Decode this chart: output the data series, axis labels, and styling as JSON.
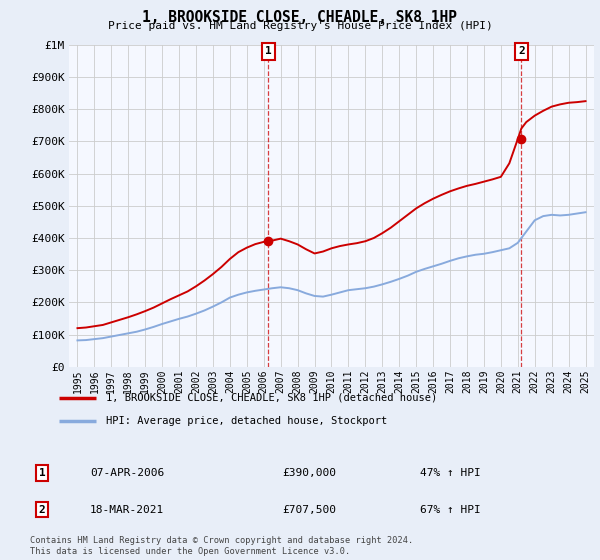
{
  "title": "1, BROOKSIDE CLOSE, CHEADLE, SK8 1HP",
  "subtitle": "Price paid vs. HM Land Registry's House Price Index (HPI)",
  "ylabel_ticks": [
    "£0",
    "£100K",
    "£200K",
    "£300K",
    "£400K",
    "£500K",
    "£600K",
    "£700K",
    "£800K",
    "£900K",
    "£1M"
  ],
  "ytick_values": [
    0,
    100000,
    200000,
    300000,
    400000,
    500000,
    600000,
    700000,
    800000,
    900000,
    1000000
  ],
  "ylim": [
    0,
    1000000
  ],
  "xlim_start": 1994.5,
  "xlim_end": 2025.5,
  "sale1_x": 2006.27,
  "sale1_y": 390000,
  "sale1_label": "1",
  "sale2_x": 2021.21,
  "sale2_y": 707500,
  "sale2_label": "2",
  "sale_color": "#cc0000",
  "hpi_line_color": "#88aadd",
  "property_line_color": "#cc0000",
  "background_color": "#e8eef8",
  "plot_bg_color": "#f5f8ff",
  "grid_color": "#cccccc",
  "legend_label1": "1, BROOKSIDE CLOSE, CHEADLE, SK8 1HP (detached house)",
  "legend_label2": "HPI: Average price, detached house, Stockport",
  "table_row1": [
    "1",
    "07-APR-2006",
    "£390,000",
    "47% ↑ HPI"
  ],
  "table_row2": [
    "2",
    "18-MAR-2021",
    "£707,500",
    "67% ↑ HPI"
  ],
  "footer": "Contains HM Land Registry data © Crown copyright and database right 2024.\nThis data is licensed under the Open Government Licence v3.0.",
  "hpi_years": [
    1995,
    1995.5,
    1996,
    1996.5,
    1997,
    1997.5,
    1998,
    1998.5,
    1999,
    1999.5,
    2000,
    2000.5,
    2001,
    2001.5,
    2002,
    2002.5,
    2003,
    2003.5,
    2004,
    2004.5,
    2005,
    2005.5,
    2006,
    2006.5,
    2007,
    2007.5,
    2008,
    2008.5,
    2009,
    2009.5,
    2010,
    2010.5,
    2011,
    2011.5,
    2012,
    2012.5,
    2013,
    2013.5,
    2014,
    2014.5,
    2015,
    2015.5,
    2016,
    2016.5,
    2017,
    2017.5,
    2018,
    2018.5,
    2019,
    2019.5,
    2020,
    2020.5,
    2021,
    2021.5,
    2022,
    2022.5,
    2023,
    2023.5,
    2024,
    2024.5,
    2025
  ],
  "hpi_values": [
    82000,
    83000,
    86000,
    89000,
    94000,
    99000,
    104000,
    109000,
    116000,
    124000,
    133000,
    141000,
    149000,
    156000,
    165000,
    175000,
    187000,
    200000,
    215000,
    224000,
    231000,
    236000,
    240000,
    244000,
    247000,
    244000,
    238000,
    228000,
    220000,
    218000,
    224000,
    231000,
    238000,
    241000,
    244000,
    249000,
    256000,
    264000,
    273000,
    283000,
    295000,
    304000,
    312000,
    320000,
    329000,
    337000,
    343000,
    348000,
    351000,
    356000,
    362000,
    368000,
    385000,
    420000,
    455000,
    468000,
    472000,
    470000,
    472000,
    476000,
    480000
  ],
  "prop_years": [
    1995,
    1995.5,
    1996,
    1996.5,
    1997,
    1997.5,
    1998,
    1998.5,
    1999,
    1999.5,
    2000,
    2000.5,
    2001,
    2001.5,
    2002,
    2002.5,
    2003,
    2003.5,
    2004,
    2004.5,
    2005,
    2005.5,
    2006,
    2006.27,
    2006.5,
    2007,
    2007.5,
    2008,
    2008.5,
    2009,
    2009.5,
    2010,
    2010.5,
    2011,
    2011.5,
    2012,
    2012.5,
    2013,
    2013.5,
    2014,
    2014.5,
    2015,
    2015.5,
    2016,
    2016.5,
    2017,
    2017.5,
    2018,
    2018.5,
    2019,
    2019.5,
    2020,
    2020.5,
    2021,
    2021.21,
    2021.5,
    2022,
    2022.5,
    2023,
    2023.5,
    2024,
    2024.5,
    2025
  ],
  "prop_values": [
    120000,
    122000,
    126000,
    130000,
    138000,
    146000,
    154000,
    163000,
    173000,
    184000,
    197000,
    210000,
    222000,
    234000,
    250000,
    268000,
    288000,
    310000,
    335000,
    356000,
    370000,
    381000,
    388000,
    390000,
    392000,
    398000,
    390000,
    380000,
    365000,
    352000,
    358000,
    368000,
    375000,
    380000,
    384000,
    390000,
    400000,
    415000,
    432000,
    452000,
    472000,
    492000,
    508000,
    522000,
    534000,
    545000,
    554000,
    562000,
    568000,
    575000,
    582000,
    590000,
    632000,
    707500,
    740000,
    760000,
    780000,
    795000,
    808000,
    815000,
    820000,
    822000,
    825000
  ]
}
